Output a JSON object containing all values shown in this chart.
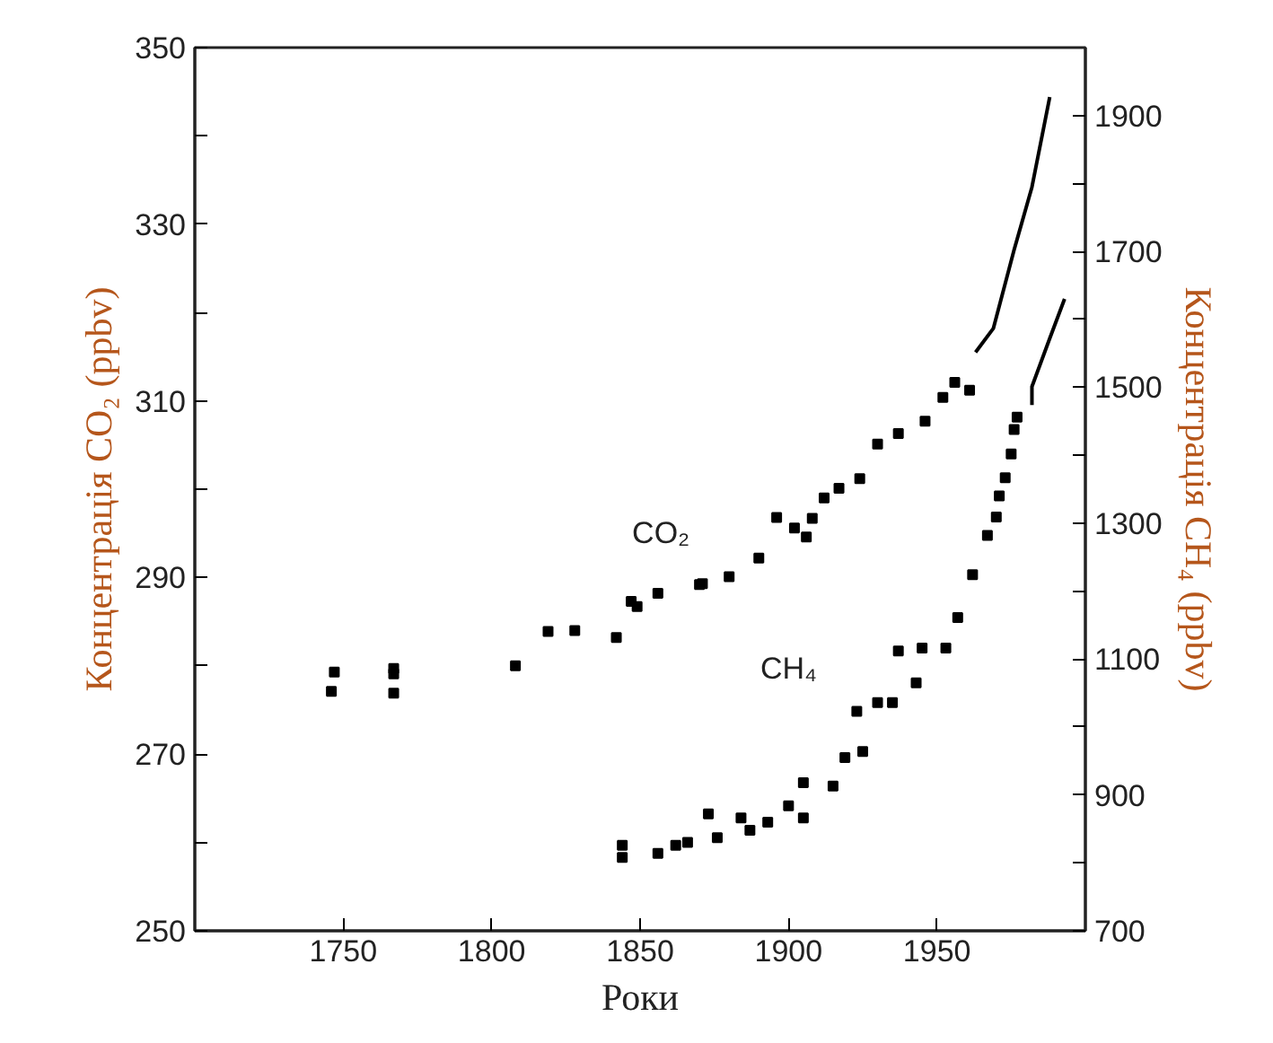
{
  "chart_data": {
    "type": "scatter",
    "xlabel": "Роки",
    "ylabel": "Концентрація CO₂ (ppbv)",
    "y2label": "Концентрація CH₄ (ppbv)",
    "xlim": [
      1700,
      2000
    ],
    "xticks": [
      1750,
      1800,
      1850,
      1900,
      1950
    ],
    "ylim": [
      250,
      350
    ],
    "yticks": [
      250,
      {
        "value": 260,
        "label": null
      },
      270,
      {
        "value": 280,
        "label": null
      },
      290,
      {
        "value": 300,
        "label": null
      },
      310,
      {
        "value": 320,
        "label": null
      },
      330,
      {
        "value": 340,
        "label": null
      },
      350
    ],
    "y2lim": [
      700,
      2000
    ],
    "y2ticks": [
      700,
      {
        "value": 800,
        "label": null
      },
      900,
      {
        "value": 1000,
        "label": null
      },
      1100,
      {
        "value": 1200,
        "label": null
      },
      1300,
      {
        "value": 1400,
        "label": null
      },
      1500,
      {
        "value": 1600,
        "label": null
      },
      1700,
      {
        "value": 1800,
        "label": null
      },
      1900
    ],
    "grid": false,
    "marker": "square",
    "series": [
      {
        "name": "CO₂",
        "color": "#000000",
        "x": [
          1747,
          1746,
          1767,
          1767,
          1767,
          1808,
          1819,
          1828,
          1842,
          1847,
          1849,
          1856,
          1870,
          1871,
          1880,
          1890,
          1896,
          1902,
          1906,
          1908,
          1912,
          1917,
          1924,
          1930,
          1937,
          1946,
          1952,
          1956,
          1961
        ],
        "values": [
          279.3,
          277.1,
          279.7,
          279.1,
          276.9,
          280.0,
          283.9,
          284.0,
          283.2,
          287.3,
          286.7,
          288.2,
          289.2,
          289.3,
          290.1,
          292.2,
          296.8,
          295.6,
          294.6,
          296.7,
          299.0,
          300.1,
          301.2,
          305.1,
          306.3,
          307.7,
          310.4,
          312.1,
          311.2
        ]
      },
      {
        "type": "line",
        "color": "#000000",
        "marker": "none",
        "line_style": "solid",
        "x": [
          1963,
          1969,
          1976,
          1982,
          1988
        ],
        "values": [
          315.5,
          318.2,
          327.1,
          334.2,
          344.4
        ]
      },
      {
        "name": "CH₄",
        "axis": "y2",
        "color": "#000000",
        "x": [
          1844,
          1844,
          1856,
          1862,
          1866,
          1873,
          1876,
          1884,
          1887,
          1893,
          1900,
          1905,
          1905,
          1915,
          1919,
          1925,
          1923,
          1930,
          1935,
          1937,
          1943,
          1945,
          1953,
          1957,
          1962,
          1967,
          1970,
          1971,
          1973,
          1975,
          1976,
          1977
        ],
        "values": [
          826,
          808,
          814,
          826,
          830,
          872,
          837,
          866,
          848,
          860,
          884,
          918,
          866,
          913,
          955,
          964,
          1023,
          1036,
          1036,
          1112,
          1065,
          1116,
          1116,
          1161,
          1224,
          1282,
          1309,
          1340,
          1367,
          1402,
          1438,
          1456
        ]
      },
      {
        "type": "line",
        "axis": "y2",
        "color": "#000000",
        "marker": "none",
        "line_style": "solid",
        "x": [
          1982,
          1982,
          1988,
          1993
        ],
        "values": [
          1474,
          1501,
          1572,
          1630
        ]
      }
    ]
  }
}
